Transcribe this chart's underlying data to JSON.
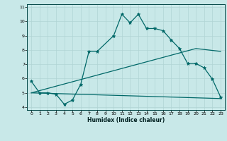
{
  "xlabel": "Humidex (Indice chaleur)",
  "bg_color": "#c8e8e8",
  "grid_color": "#b0d4d4",
  "line_color": "#006868",
  "xlim": [
    -0.5,
    23.5
  ],
  "ylim": [
    3.8,
    11.2
  ],
  "xticks": [
    0,
    1,
    2,
    3,
    4,
    5,
    6,
    7,
    8,
    9,
    10,
    11,
    12,
    13,
    14,
    15,
    16,
    17,
    18,
    19,
    20,
    21,
    22,
    23
  ],
  "yticks": [
    4,
    5,
    6,
    7,
    8,
    9,
    10,
    11
  ],
  "line1_x": [
    0,
    1,
    2,
    3,
    4,
    5,
    6,
    7,
    8,
    10,
    11,
    12,
    13,
    14,
    15,
    16,
    17,
    18,
    19,
    20,
    21,
    22,
    23
  ],
  "line1_y": [
    5.8,
    5.0,
    5.0,
    4.9,
    4.2,
    4.5,
    5.6,
    7.9,
    7.9,
    9.0,
    10.5,
    9.9,
    10.5,
    9.5,
    9.5,
    9.35,
    8.7,
    8.1,
    7.05,
    7.05,
    6.75,
    5.95,
    4.7
  ],
  "line2_x": [
    0,
    23
  ],
  "line2_y": [
    5.0,
    4.6
  ],
  "line3_x": [
    0,
    20,
    23
  ],
  "line3_y": [
    5.0,
    8.1,
    7.9
  ]
}
